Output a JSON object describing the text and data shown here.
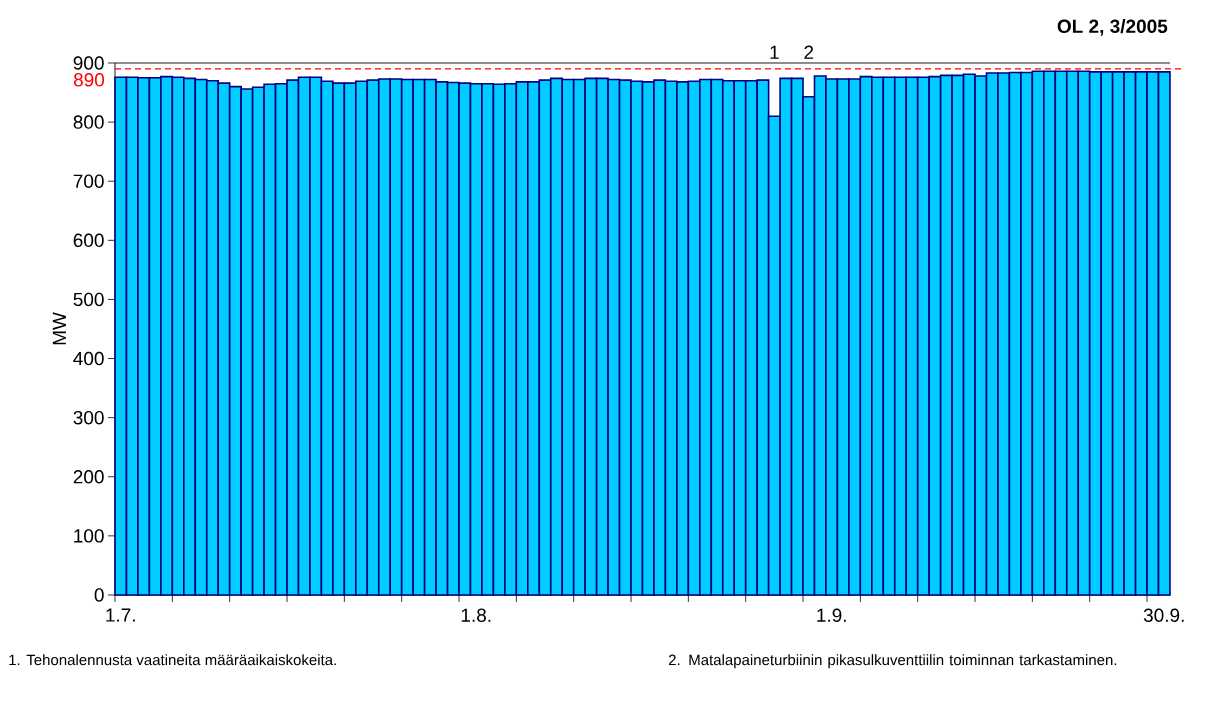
{
  "chart_data": {
    "type": "bar",
    "title": "OL 2, 3/2005",
    "ylabel": "MW",
    "categories": [
      "1.7.",
      null,
      null,
      null,
      null,
      null,
      null,
      null,
      null,
      null,
      null,
      null,
      null,
      null,
      null,
      null,
      null,
      null,
      null,
      null,
      null,
      null,
      null,
      null,
      null,
      null,
      null,
      null,
      null,
      null,
      null,
      "1.8.",
      null,
      null,
      null,
      null,
      null,
      null,
      null,
      null,
      null,
      null,
      null,
      null,
      null,
      null,
      null,
      null,
      null,
      null,
      null,
      null,
      null,
      null,
      null,
      null,
      null,
      null,
      null,
      null,
      null,
      null,
      "1.9.",
      null,
      null,
      null,
      null,
      null,
      null,
      null,
      null,
      null,
      null,
      null,
      null,
      null,
      null,
      null,
      null,
      null,
      null,
      null,
      null,
      null,
      null,
      null,
      null,
      null,
      null,
      null,
      null,
      "30.9."
    ],
    "values": [
      876,
      876,
      875,
      875,
      877,
      876,
      874,
      872,
      870,
      866,
      860,
      856,
      859,
      864,
      865,
      871,
      876,
      876,
      869,
      866,
      866,
      869,
      871,
      873,
      873,
      872,
      872,
      872,
      868,
      867,
      866,
      865,
      865,
      864,
      865,
      868,
      868,
      871,
      874,
      872,
      872,
      874,
      874,
      872,
      871,
      869,
      868,
      871,
      869,
      868,
      869,
      872,
      872,
      870,
      870,
      870,
      871,
      810,
      874,
      874,
      843,
      878,
      873,
      873,
      873,
      877,
      876,
      876,
      876,
      876,
      876,
      877,
      879,
      879,
      881,
      878,
      883,
      883,
      884,
      884,
      886,
      886,
      886,
      886,
      886,
      885,
      885,
      885,
      885,
      885,
      885,
      885
    ],
    "color": "#00ccff",
    "ylim": [
      0,
      900
    ],
    "yticks": [
      0,
      100,
      200,
      300,
      400,
      500,
      600,
      700,
      800,
      900
    ],
    "ref_lines": [
      {
        "axis": "y",
        "value": 890,
        "label": "890",
        "color": "#ff0000",
        "line_style": "dashed"
      }
    ],
    "annotations": [
      "1",
      "2",
      "1.  Tehonalennusta vaatineita määräaikaiskokeita.",
      "2.  Matalapaineturbiinin pikasulkuventtiilin toiminnan tarkastaminen."
    ]
  }
}
